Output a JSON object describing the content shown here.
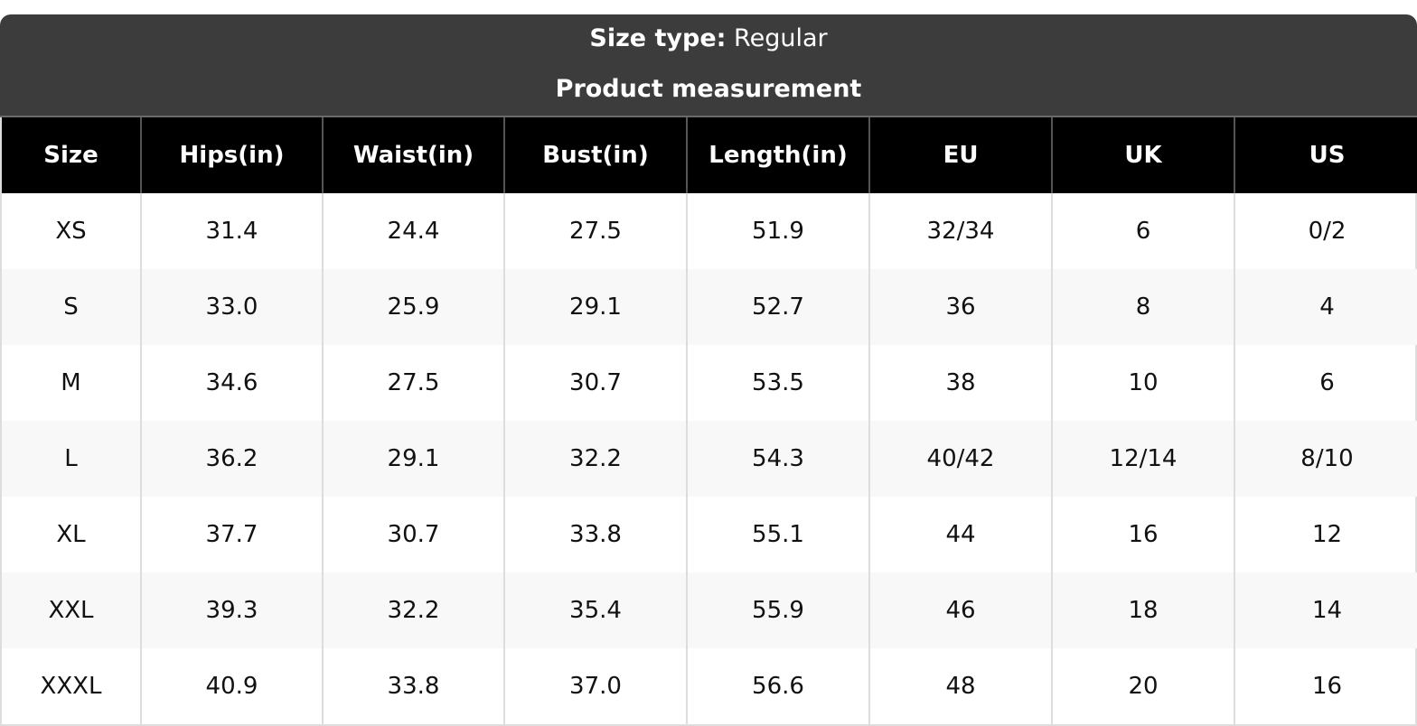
{
  "header": {
    "size_type_label": "Size type:",
    "size_type_value": "Regular",
    "subtitle": "Product measurement"
  },
  "table": {
    "columns": [
      "Size",
      "Hips(in)",
      "Waist(in)",
      "Bust(in)",
      "Length(in)",
      "EU",
      "UK",
      "US"
    ],
    "rows": [
      [
        "XS",
        "31.4",
        "24.4",
        "27.5",
        "51.9",
        "32/34",
        "6",
        "0/2"
      ],
      [
        "S",
        "33.0",
        "25.9",
        "29.1",
        "52.7",
        "36",
        "8",
        "4"
      ],
      [
        "M",
        "34.6",
        "27.5",
        "30.7",
        "53.5",
        "38",
        "10",
        "6"
      ],
      [
        "L",
        "36.2",
        "29.1",
        "32.2",
        "54.3",
        "40/42",
        "12/14",
        "8/10"
      ],
      [
        "XL",
        "37.7",
        "30.7",
        "33.8",
        "55.1",
        "44",
        "16",
        "12"
      ],
      [
        "XXL",
        "39.3",
        "32.2",
        "35.4",
        "55.9",
        "46",
        "18",
        "14"
      ],
      [
        "XXXL",
        "40.9",
        "33.8",
        "37.0",
        "56.6",
        "48",
        "20",
        "16"
      ]
    ]
  }
}
